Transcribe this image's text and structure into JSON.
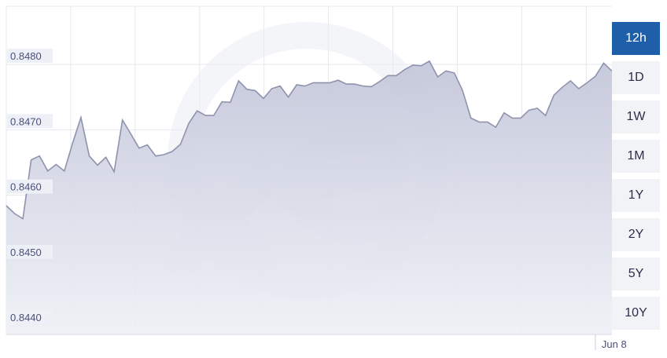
{
  "chart_data": {
    "type": "area",
    "y_ticks": [
      0.844,
      0.845,
      0.846,
      0.847,
      0.848
    ],
    "y_tick_labels": [
      "0.8440",
      "0.8450",
      "0.8460",
      "0.8470",
      "0.8480"
    ],
    "ylim": [
      0.84375,
      0.84877
    ],
    "x_tick_label": "Jun 8",
    "x_tick_index": 71,
    "grid": true,
    "values": [
      0.84572,
      0.8456,
      0.84552,
      0.84642,
      0.84648,
      0.84625,
      0.84635,
      0.84625,
      0.84668,
      0.84707,
      0.84648,
      0.84634,
      0.84646,
      0.84624,
      0.84703,
      0.84682,
      0.8466,
      0.84665,
      0.84648,
      0.8465,
      0.84655,
      0.84666,
      0.84698,
      0.84717,
      0.8471,
      0.8471,
      0.84731,
      0.8473,
      0.84763,
      0.8475,
      0.84748,
      0.84736,
      0.84751,
      0.84755,
      0.84738,
      0.84757,
      0.84755,
      0.8476,
      0.8476,
      0.8476,
      0.84764,
      0.84758,
      0.84758,
      0.84755,
      0.84754,
      0.84762,
      0.84771,
      0.84771,
      0.8478,
      0.84787,
      0.84786,
      0.84793,
      0.84769,
      0.84778,
      0.84775,
      0.84748,
      0.84706,
      0.847,
      0.847,
      0.84692,
      0.84714,
      0.84706,
      0.84706,
      0.84718,
      0.84721,
      0.8471,
      0.84741,
      0.84753,
      0.84763,
      0.84751,
      0.8476,
      0.8477,
      0.8479,
      0.84778
    ]
  },
  "watermark": "xe",
  "range_buttons": [
    "12h",
    "1D",
    "1W",
    "1M",
    "1Y",
    "2Y",
    "5Y",
    "10Y"
  ],
  "active_range": "12h",
  "colors": {
    "area_fill": "#cdd0df",
    "area_line": "#8f93ad",
    "grid": "#e6e8f0",
    "active_button": "#1f5ea8"
  }
}
